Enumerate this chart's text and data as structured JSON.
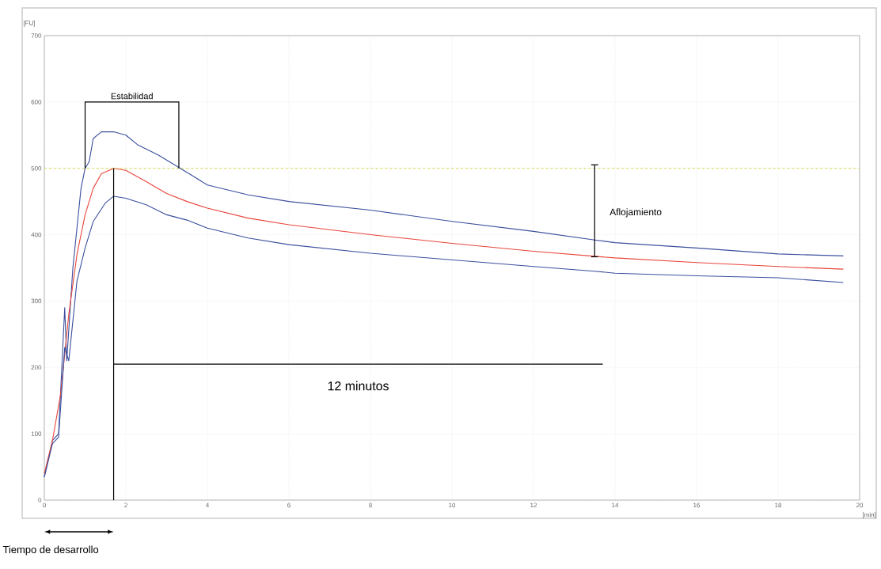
{
  "chart_data": {
    "type": "line",
    "ylabel": "[FU]",
    "xlabel": "[min]",
    "xlim": [
      0,
      20
    ],
    "ylim": [
      0,
      700
    ],
    "xticks": [
      0,
      2,
      4,
      6,
      8,
      10,
      12,
      14,
      16,
      18,
      20
    ],
    "yticks": [
      0,
      100,
      200,
      300,
      400,
      500,
      600,
      700
    ],
    "grid": true,
    "marker": "none",
    "line_style": "solid",
    "series": [
      {
        "color": "#3b4f9e",
        "x": [
          0,
          0.2,
          0.35,
          0.5,
          0.55,
          0.7,
          0.9,
          1.0,
          1.1,
          1.2,
          1.4,
          1.7,
          2,
          2.3,
          2.8,
          3.2,
          3.6,
          4,
          5,
          6,
          8,
          10,
          12,
          13.5,
          14,
          16,
          18,
          19.6
        ],
        "values": [
          35,
          90,
          100,
          290,
          210,
          350,
          470,
          500,
          510,
          545,
          555,
          555,
          550,
          535,
          520,
          505,
          490,
          475,
          460,
          450,
          437,
          420,
          405,
          392,
          388,
          380,
          371,
          368
        ]
      },
      {
        "color": "#e8463c",
        "x": [
          0,
          0.2,
          0.4,
          0.6,
          0.8,
          1.0,
          1.2,
          1.4,
          1.7,
          2.0,
          2.5,
          3,
          3.5,
          4,
          5,
          6,
          8,
          10,
          12,
          14,
          16,
          18,
          19.6
        ],
        "values": [
          40,
          90,
          160,
          280,
          370,
          430,
          470,
          492,
          500,
          497,
          480,
          462,
          450,
          440,
          425,
          415,
          400,
          387,
          375,
          365,
          358,
          352,
          348
        ]
      },
      {
        "name": "12 minutos",
        "type": "line",
        "color": "#000000",
        "x": [
          1.7,
          13.7
        ],
        "values": [
          205,
          205
        ]
      },
      {
        "color": "#3b4f9e",
        "x": [
          0,
          0.2,
          0.35,
          0.5,
          0.6,
          0.8,
          1.0,
          1.2,
          1.5,
          1.7,
          2,
          2.5,
          3,
          3.5,
          4,
          5,
          6,
          8,
          10,
          12,
          13.5,
          14,
          16,
          18,
          19.6
        ],
        "values": [
          35,
          85,
          95,
          230,
          210,
          330,
          380,
          420,
          448,
          458,
          455,
          445,
          430,
          422,
          410,
          395,
          385,
          372,
          362,
          352,
          345,
          342,
          338,
          335,
          328
        ]
      }
    ],
    "ref_lines": [
      {
        "axis": "y",
        "value": 500,
        "color": "#e0e070",
        "line_style": "dashed"
      },
      {
        "axis": "x",
        "value": 1.7,
        "color": "#000000",
        "line_style": "solid"
      }
    ],
    "annotations": [
      "Estabilidad",
      "Aflojamiento",
      "Tiempo de desarrollo"
    ]
  }
}
